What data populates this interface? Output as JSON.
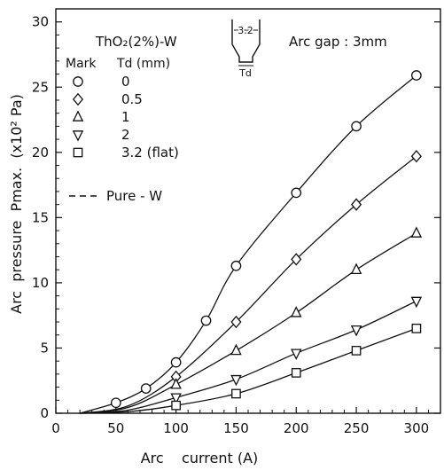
{
  "chart_data": {
    "type": "line",
    "title": "",
    "xlabel": "Arc    current (A)",
    "ylabel": "Arc  pressure  Pmax.  (x10² Pa)",
    "xlim": [
      0,
      320
    ],
    "ylim": [
      0,
      31
    ],
    "xticks": [
      "0",
      "50",
      "100",
      "150",
      "200",
      "250",
      "300"
    ],
    "yticks": [
      "0",
      "5",
      "10",
      "15",
      "20",
      "25",
      "30"
    ],
    "grid": false,
    "legend_position": "top-left",
    "annotations": {
      "material": "ThO₂(2%)-W",
      "legend_header_mark": "Mark",
      "legend_header_td": "Td (mm)",
      "arc_gap": "Arc gap : 3mm",
      "tip_diameter_label": "3.2",
      "tip_td_label": "Td",
      "dashed_legend": "Pure - W"
    },
    "series": [
      {
        "name": "0",
        "marker": "circle",
        "points": [
          [
            50,
            0.8
          ],
          [
            75,
            1.9
          ],
          [
            100,
            3.9
          ],
          [
            125,
            7.1
          ],
          [
            150,
            11.3
          ],
          [
            200,
            16.9
          ],
          [
            250,
            22.0
          ],
          [
            300,
            25.9
          ]
        ]
      },
      {
        "name": "0.5",
        "marker": "diamond",
        "points": [
          [
            100,
            2.8
          ],
          [
            150,
            7.0
          ],
          [
            200,
            11.8
          ],
          [
            250,
            16.0
          ],
          [
            300,
            19.7
          ]
        ]
      },
      {
        "name": "1",
        "marker": "triangle-up",
        "points": [
          [
            100,
            2.2
          ],
          [
            150,
            4.8
          ],
          [
            200,
            7.7
          ],
          [
            250,
            11.0
          ],
          [
            300,
            13.8
          ]
        ]
      },
      {
        "name": "2",
        "marker": "triangle-down",
        "points": [
          [
            100,
            1.2
          ],
          [
            150,
            2.6
          ],
          [
            200,
            4.6
          ],
          [
            250,
            6.4
          ],
          [
            300,
            8.6
          ]
        ]
      },
      {
        "name": "3.2 (flat)",
        "marker": "square",
        "points": [
          [
            100,
            0.6
          ],
          [
            150,
            1.5
          ],
          [
            200,
            3.1
          ],
          [
            250,
            4.8
          ],
          [
            300,
            6.5
          ]
        ]
      }
    ],
    "curve_start_x": 20
  }
}
